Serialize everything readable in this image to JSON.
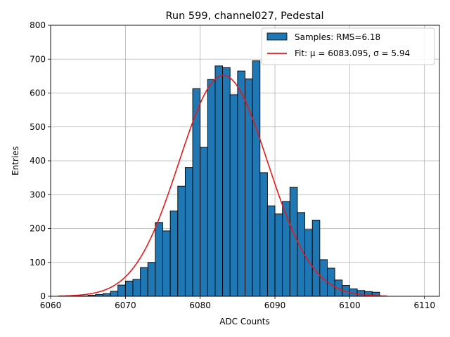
{
  "chart_data": {
    "type": "bar",
    "title": "Run 599, channel027, Pedestal",
    "xlabel": "ADC Counts",
    "ylabel": "Entries",
    "xlim": [
      6060,
      6112
    ],
    "ylim": [
      0,
      800
    ],
    "xticks": [
      6060,
      6070,
      6080,
      6090,
      6100,
      6110
    ],
    "yticks": [
      0,
      100,
      200,
      300,
      400,
      500,
      600,
      700,
      800
    ],
    "grid": true,
    "legend_position": "top-right",
    "bin_width": 1,
    "bins": [
      {
        "x": 6061,
        "v": 0
      },
      {
        "x": 6062,
        "v": 0
      },
      {
        "x": 6063,
        "v": 1
      },
      {
        "x": 6064,
        "v": 1
      },
      {
        "x": 6065,
        "v": 3
      },
      {
        "x": 6066,
        "v": 5
      },
      {
        "x": 6067,
        "v": 8
      },
      {
        "x": 6068,
        "v": 15
      },
      {
        "x": 6069,
        "v": 33
      },
      {
        "x": 6070,
        "v": 45
      },
      {
        "x": 6071,
        "v": 50
      },
      {
        "x": 6072,
        "v": 85
      },
      {
        "x": 6073,
        "v": 100
      },
      {
        "x": 6074,
        "v": 218
      },
      {
        "x": 6075,
        "v": 193
      },
      {
        "x": 6076,
        "v": 252
      },
      {
        "x": 6077,
        "v": 325
      },
      {
        "x": 6078,
        "v": 380
      },
      {
        "x": 6079,
        "v": 613
      },
      {
        "x": 6080,
        "v": 440
      },
      {
        "x": 6081,
        "v": 640
      },
      {
        "x": 6082,
        "v": 680
      },
      {
        "x": 6083,
        "v": 675
      },
      {
        "x": 6084,
        "v": 595
      },
      {
        "x": 6085,
        "v": 665
      },
      {
        "x": 6086,
        "v": 642
      },
      {
        "x": 6087,
        "v": 695
      },
      {
        "x": 6088,
        "v": 365
      },
      {
        "x": 6089,
        "v": 267
      },
      {
        "x": 6090,
        "v": 243
      },
      {
        "x": 6091,
        "v": 280
      },
      {
        "x": 6092,
        "v": 322
      },
      {
        "x": 6093,
        "v": 247
      },
      {
        "x": 6094,
        "v": 197
      },
      {
        "x": 6095,
        "v": 225
      },
      {
        "x": 6096,
        "v": 108
      },
      {
        "x": 6097,
        "v": 83
      },
      {
        "x": 6098,
        "v": 48
      },
      {
        "x": 6099,
        "v": 32
      },
      {
        "x": 6100,
        "v": 22
      },
      {
        "x": 6101,
        "v": 17
      },
      {
        "x": 6102,
        "v": 14
      },
      {
        "x": 6103,
        "v": 12
      }
    ],
    "fit": {
      "mu": 6083.095,
      "sigma": 5.94,
      "amplitude": 652,
      "x_from": 6061,
      "x_to": 6105
    },
    "series": [
      {
        "name": "Samples: RMS=6.18",
        "kind": "histogram",
        "color": "#1f77b4"
      },
      {
        "name": "Fit: μ = 6083.095, σ = 5.94",
        "kind": "line",
        "color": "#e41a1c"
      }
    ]
  }
}
